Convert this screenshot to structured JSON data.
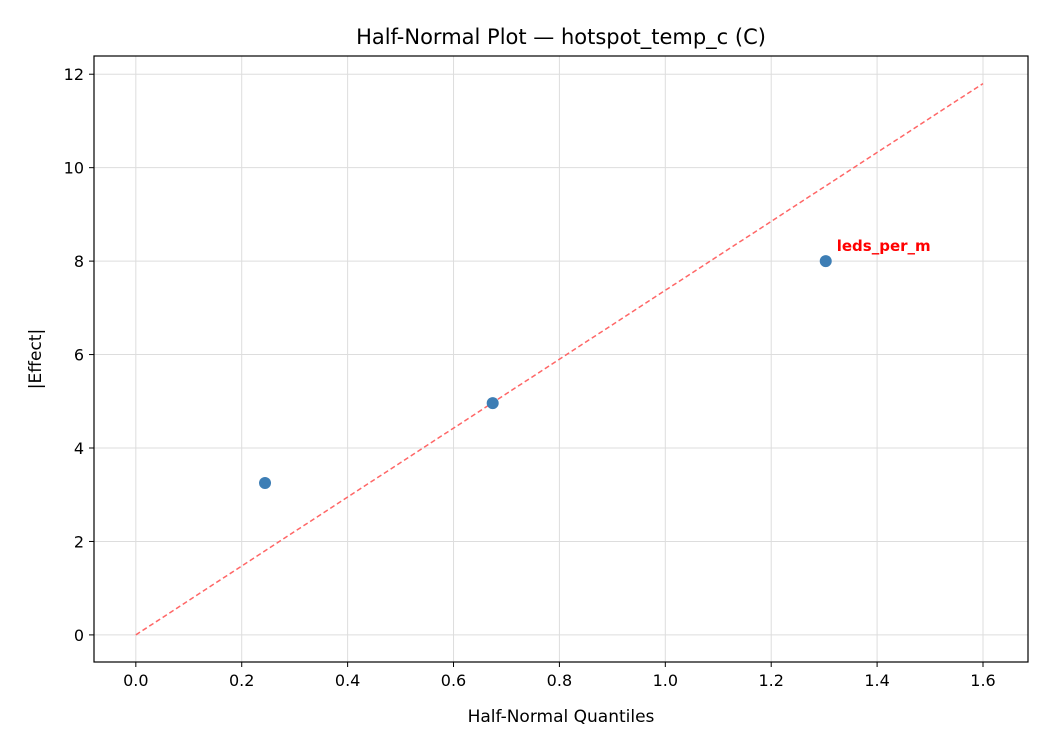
{
  "chart_data": {
    "type": "scatter",
    "title": "Half-Normal Plot — hotspot_temp_c (C)",
    "xlabel": "Half-Normal Quantiles",
    "ylabel": "|Effect|",
    "xlim": [
      -0.079,
      1.685
    ],
    "ylim": [
      -0.58,
      12.39
    ],
    "xticks": [
      0.0,
      0.2,
      0.4,
      0.6,
      0.8,
      1.0,
      1.2,
      1.4,
      1.6
    ],
    "xtick_labels": [
      "0.0",
      "0.2",
      "0.4",
      "0.6",
      "0.8",
      "1.0",
      "1.2",
      "1.4",
      "1.6"
    ],
    "yticks": [
      0,
      2,
      4,
      6,
      8,
      10,
      12
    ],
    "ytick_labels": [
      "0",
      "2",
      "4",
      "6",
      "8",
      "10",
      "12"
    ],
    "grid": true,
    "points": [
      {
        "x": 0.244,
        "y": 3.25,
        "label": ""
      },
      {
        "x": 0.674,
        "y": 4.96,
        "label": ""
      },
      {
        "x": 1.303,
        "y": 8.0,
        "label": "leds_per_m"
      }
    ],
    "reference_line": {
      "x": [
        0,
        1.6
      ],
      "y": [
        0,
        11.8
      ],
      "style": "dashed"
    },
    "colors": {
      "points": "#3d7eb5",
      "reference_line": "#ff6666",
      "annotation": "#ff0000"
    }
  }
}
